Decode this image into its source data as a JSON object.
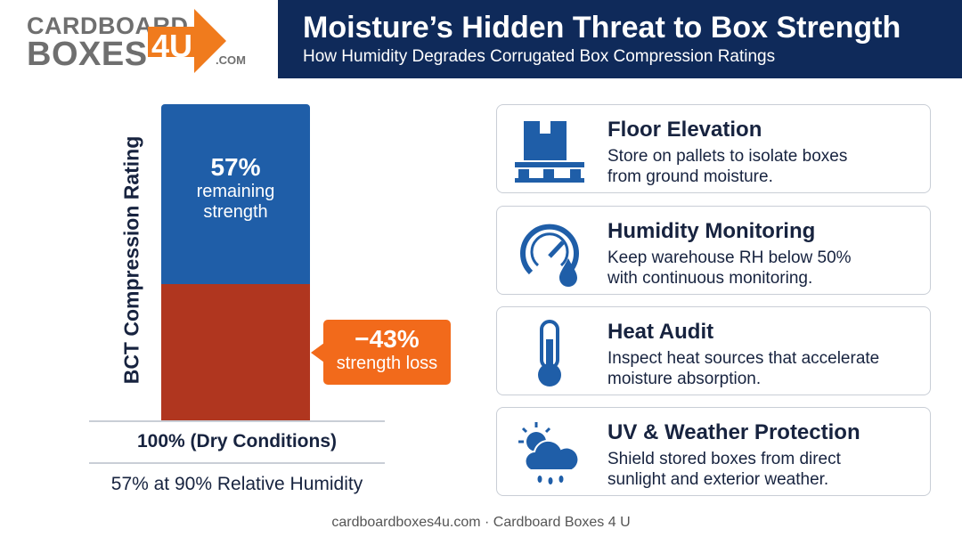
{
  "logo": {
    "line1": "CARDBOARD",
    "line2": "BOXES",
    "badge": "4U",
    "suffix": ".COM"
  },
  "header": {
    "title": "Moisture’s Hidden Threat to Box Strength",
    "subtitle": "How Humidity Degrades Corrugated Box Compression Ratings"
  },
  "chart_data": {
    "type": "bar",
    "ylabel": "BCT Compression Rating",
    "categories": [
      "100% (Dry Conditions)"
    ],
    "series": [
      {
        "name": "strength loss",
        "color": "#b0361f",
        "values": [
          43
        ],
        "value_labels": [
          "−43%"
        ]
      },
      {
        "name": "remaining strength",
        "color": "#1f5ea8",
        "values": [
          57
        ],
        "value_labels": [
          "57%"
        ]
      }
    ],
    "ylim": [
      0,
      100
    ],
    "caption": "57% at 90% Relative Humidity"
  },
  "cards": [
    {
      "title": "Floor Elevation",
      "lines": [
        "Store on pallets to isolate boxes",
        "from ground moisture."
      ]
    },
    {
      "title": "Humidity Monitoring",
      "lines": [
        "Keep warehouse RH below 50%",
        "with continuous monitoring."
      ]
    },
    {
      "title": "Heat Audit",
      "lines": [
        "Inspect heat sources that accelerate",
        "moisture absorption."
      ]
    },
    {
      "title": "UV & Weather Protection",
      "lines": [
        "Shield stored boxes from direct",
        "sunlight and exterior weather."
      ]
    }
  ],
  "footer": "cardboardboxes4u.com · Cardboard Boxes 4 U"
}
